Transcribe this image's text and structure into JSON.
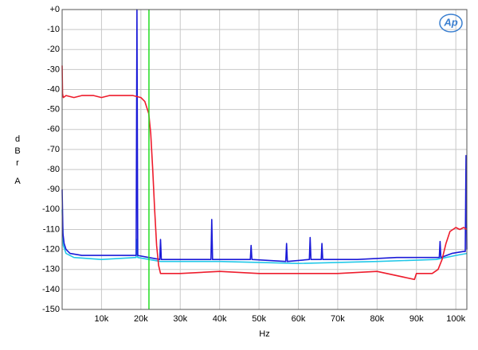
{
  "chart_data": {
    "type": "line",
    "logo": "Ap",
    "y_label": "dBr",
    "y_label_unit": "A",
    "x_label": "Hz",
    "xlim": [
      0,
      102800
    ],
    "ylim": [
      -150,
      0
    ],
    "grid": true,
    "xticks": [
      {
        "value": 10000,
        "label": "10k"
      },
      {
        "value": 20000,
        "label": "20k"
      },
      {
        "value": 30000,
        "label": "30k"
      },
      {
        "value": 40000,
        "label": "40k"
      },
      {
        "value": 50000,
        "label": "50k"
      },
      {
        "value": 60000,
        "label": "60k"
      },
      {
        "value": 70000,
        "label": "70k"
      },
      {
        "value": 80000,
        "label": "80k"
      },
      {
        "value": 90000,
        "label": "90k"
      },
      {
        "value": 100000,
        "label": "100k"
      }
    ],
    "yticks": [
      {
        "value": 0,
        "label": "+0"
      },
      -10,
      -20,
      -30,
      -40,
      -50,
      -60,
      -70,
      -80,
      -90,
      -100,
      -110,
      -120,
      -130,
      -140,
      -150
    ],
    "markers": [
      {
        "x": 22050,
        "color": "#22dd22"
      }
    ],
    "series": [
      {
        "color": "#22c8e8",
        "x": [
          0,
          300,
          1000,
          3000,
          10000,
          18800,
          19000,
          19200,
          25000,
          40000,
          60000,
          80000,
          95000,
          100000,
          102800
        ],
        "values": [
          -100,
          -118,
          -122,
          -124,
          -125,
          -124,
          -115,
          -124,
          -126,
          -126,
          -127,
          -126,
          -125,
          -123,
          -122
        ]
      },
      {
        "color": "#1a1ad8",
        "x": [
          0,
          200,
          500,
          1000,
          2000,
          5000,
          10000,
          15000,
          18800,
          19000,
          19200,
          22000,
          24800,
          25000,
          25200,
          30000,
          37800,
          38000,
          38200,
          47800,
          48000,
          48200,
          56800,
          57000,
          57200,
          62800,
          63000,
          63200,
          65800,
          66000,
          66200,
          75000,
          85000,
          95800,
          96000,
          96200,
          99000,
          102000,
          102400,
          102600,
          102800
        ],
        "values": [
          -90,
          -112,
          -117,
          -120,
          -122,
          -123,
          -123,
          -123,
          -123,
          0,
          -123,
          -124,
          -125,
          -115,
          -125,
          -125,
          -125,
          -105,
          -125,
          -125,
          -118,
          -125,
          -126,
          -117,
          -126,
          -125,
          -114,
          -125,
          -125,
          -117,
          -125,
          -125,
          -124,
          -124,
          -116,
          -124,
          -122,
          -121,
          -121,
          -73,
          -120
        ]
      },
      {
        "color": "#ee1c2c",
        "x": [
          0,
          100,
          300,
          1000,
          3000,
          5000,
          8000,
          10000,
          12000,
          15000,
          18000,
          20000,
          21000,
          22000,
          22500,
          23000,
          23500,
          24000,
          24500,
          25000,
          30000,
          40000,
          50000,
          60000,
          70000,
          80000,
          89500,
          90000,
          94000,
          95500,
          96500,
          97500,
          98500,
          100000,
          101000,
          102000,
          102800
        ],
        "values": [
          -28,
          -42,
          -44,
          -43,
          -44,
          -43,
          -43,
          -44,
          -43,
          -43,
          -43,
          -44,
          -46,
          -52,
          -62,
          -80,
          -100,
          -118,
          -128,
          -132,
          -132,
          -131,
          -132,
          -132,
          -132,
          -131,
          -135,
          -132,
          -132,
          -130,
          -125,
          -117,
          -111,
          -109,
          -110,
          -109,
          -110
        ]
      }
    ]
  }
}
